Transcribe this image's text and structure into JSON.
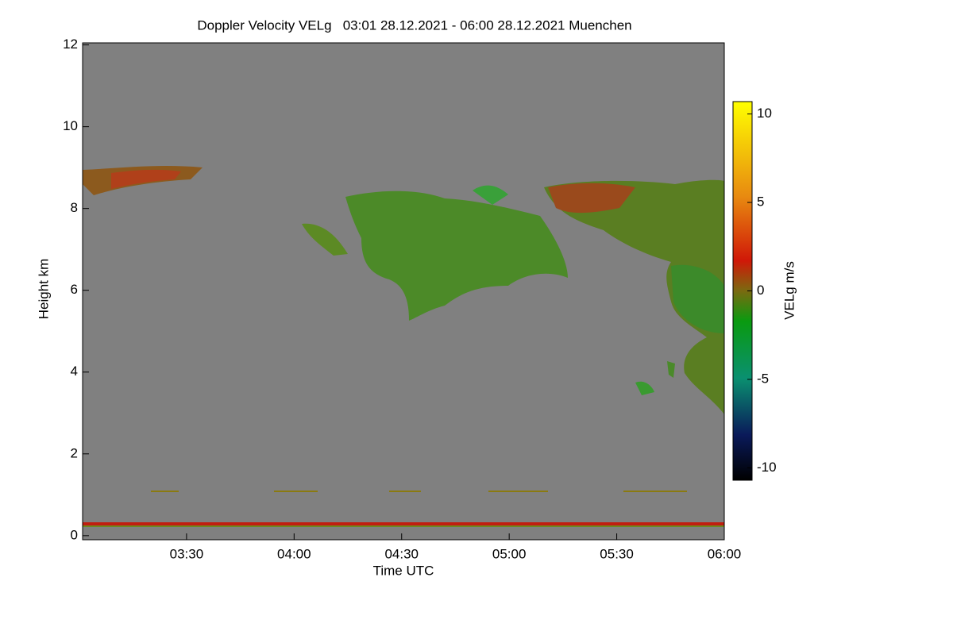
{
  "chart_data": {
    "type": "heatmap",
    "title": "Doppler Velocity VELg   03:01 28.12.2021 - 06:00 28.12.2021 Muenchen",
    "x_label": "Time UTC",
    "y_label": "Height km",
    "xlim": [
      181,
      360
    ],
    "xticks": [
      {
        "value": 210,
        "label": "03:30"
      },
      {
        "value": 240,
        "label": "04:00"
      },
      {
        "value": 270,
        "label": "04:30"
      },
      {
        "value": 300,
        "label": "05:00"
      },
      {
        "value": 330,
        "label": "05:30"
      },
      {
        "value": 360,
        "label": "06:00"
      }
    ],
    "ylim": [
      -0.1,
      12.05
    ],
    "yticks": [
      0,
      2,
      4,
      6,
      8,
      10,
      12
    ],
    "colorbar": {
      "label": "VELg m/s",
      "lim": [
        -10.7,
        10.7
      ],
      "ticks": [
        -10,
        -5,
        0,
        5,
        10
      ]
    },
    "background": "#808080"
  }
}
